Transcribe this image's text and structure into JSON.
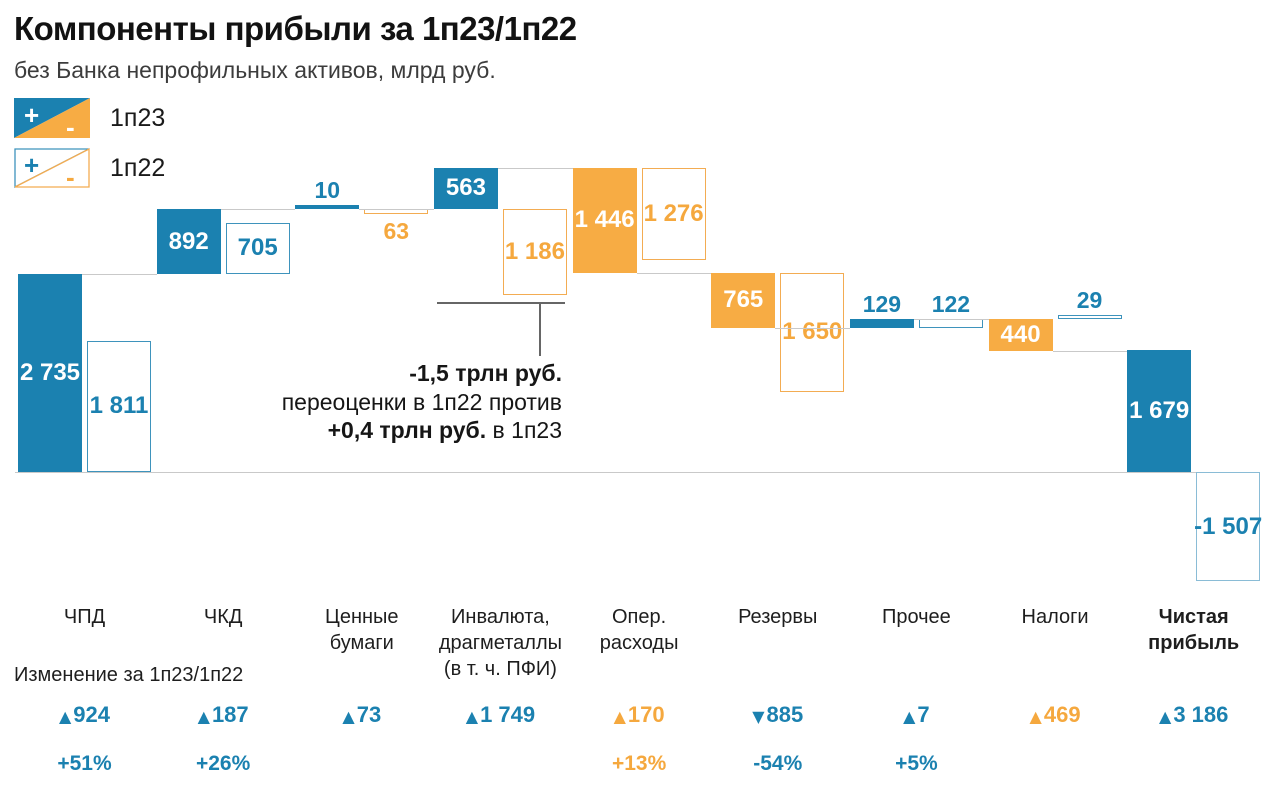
{
  "header": {
    "title": "Компоненты прибыли за 1п23/1п22",
    "subtitle": "без Банка непрофильных активов, млрд руб."
  },
  "legend": {
    "plus_sign": "+",
    "minus_sign": "-",
    "items": [
      {
        "label": "1п23",
        "type": "solid"
      },
      {
        "label": "1п22",
        "type": "outline"
      }
    ]
  },
  "annotation": {
    "bold1": "-1,5 трлн руб.",
    "line2": "переоценки в 1п22 против",
    "bold3": "+0,4 трлн руб.",
    "rest3": " в 1п23"
  },
  "footer": {
    "change_label": "Изменение за 1п23/1п22"
  },
  "colors": {
    "blue": "#1B81B0",
    "orange": "#F7AC44",
    "blue_border": "#3E93BC",
    "orange_border": "#F3AC52",
    "total_border": "#8ABCD6",
    "blue_text": "#1B81B0",
    "orange_text": "#F5A83E",
    "connector": "#C9C9C9"
  },
  "chart_data": {
    "type": "bar",
    "subtype": "waterfall",
    "unit": "млрд руб.",
    "series_names": [
      "1п23",
      "1п22"
    ],
    "legend_note": "blue = positive contribution, orange = negative contribution; solid = 1п23, outline = 1п22",
    "categories": [
      {
        "name": "ЧПД",
        "label_lines": [
          "ЧПД"
        ],
        "bold": false,
        "total": false,
        "v1p23": 2735,
        "v1p22": 1811,
        "display23": "2 735",
        "display22": "1 811",
        "change": {
          "text": "924",
          "dir": "up",
          "color": "blue"
        },
        "pct": {
          "text": "+51%",
          "color": "blue"
        }
      },
      {
        "name": "ЧКД",
        "label_lines": [
          "ЧКД"
        ],
        "bold": false,
        "total": false,
        "v1p23": 892,
        "v1p22": 705,
        "display23": "892",
        "display22": "705",
        "change": {
          "text": "187",
          "dir": "up",
          "color": "blue"
        },
        "pct": {
          "text": "+26%",
          "color": "blue"
        }
      },
      {
        "name": "Ценные бумаги",
        "label_lines": [
          "Ценные",
          "бумаги"
        ],
        "bold": false,
        "total": false,
        "v1p23": 10,
        "v1p22": -63,
        "display23": "10",
        "display22": "63",
        "change": {
          "text": "73",
          "dir": "up",
          "color": "blue"
        },
        "pct": null
      },
      {
        "name": "Инвалюта, драгметаллы (в т. ч. ПФИ)",
        "label_lines": [
          "Инвалюта,",
          "драгметаллы",
          "(в т. ч. ПФИ)"
        ],
        "bold": false,
        "total": false,
        "v1p23": 563,
        "v1p22": -1186,
        "display23": "563",
        "display22": "1 186",
        "change": {
          "text": "1 749",
          "dir": "up",
          "color": "blue"
        },
        "pct": null
      },
      {
        "name": "Опер. расходы",
        "label_lines": [
          "Опер.",
          "расходы"
        ],
        "bold": false,
        "total": false,
        "v1p23": -1446,
        "v1p22": -1276,
        "display23": "1 446",
        "display22": "1 276",
        "change": {
          "text": "170",
          "dir": "up",
          "color": "orange"
        },
        "pct": {
          "text": "+13%",
          "color": "orange"
        }
      },
      {
        "name": "Резервы",
        "label_lines": [
          "Резервы"
        ],
        "bold": false,
        "total": false,
        "v1p23": -765,
        "v1p22": -1650,
        "display23": "765",
        "display22": "1 650",
        "change": {
          "text": "885",
          "dir": "down",
          "color": "blue"
        },
        "pct": {
          "text": "-54%",
          "color": "blue"
        }
      },
      {
        "name": "Прочее",
        "label_lines": [
          "Прочее"
        ],
        "bold": false,
        "total": false,
        "v1p23": 129,
        "v1p22": 122,
        "display23": "129",
        "display22": "122",
        "change": {
          "text": "7",
          "dir": "up",
          "color": "blue"
        },
        "pct": {
          "text": "+5%",
          "color": "blue"
        }
      },
      {
        "name": "Налоги",
        "label_lines": [
          "Налоги"
        ],
        "bold": false,
        "total": false,
        "v1p23": -440,
        "v1p22": 29,
        "display23": "440",
        "display22": "29",
        "change": {
          "text": "469",
          "dir": "up",
          "color": "orange"
        },
        "pct": null
      },
      {
        "name": "Чистая прибыль",
        "label_lines": [
          "Чистая",
          "прибыль"
        ],
        "bold": true,
        "total": true,
        "v1p23": 1679,
        "v1p22": -1507,
        "display23": "1 679",
        "display22": "-1 507",
        "change": {
          "text": "3 186",
          "dir": "up",
          "color": "blue"
        },
        "pct": null
      }
    ]
  }
}
